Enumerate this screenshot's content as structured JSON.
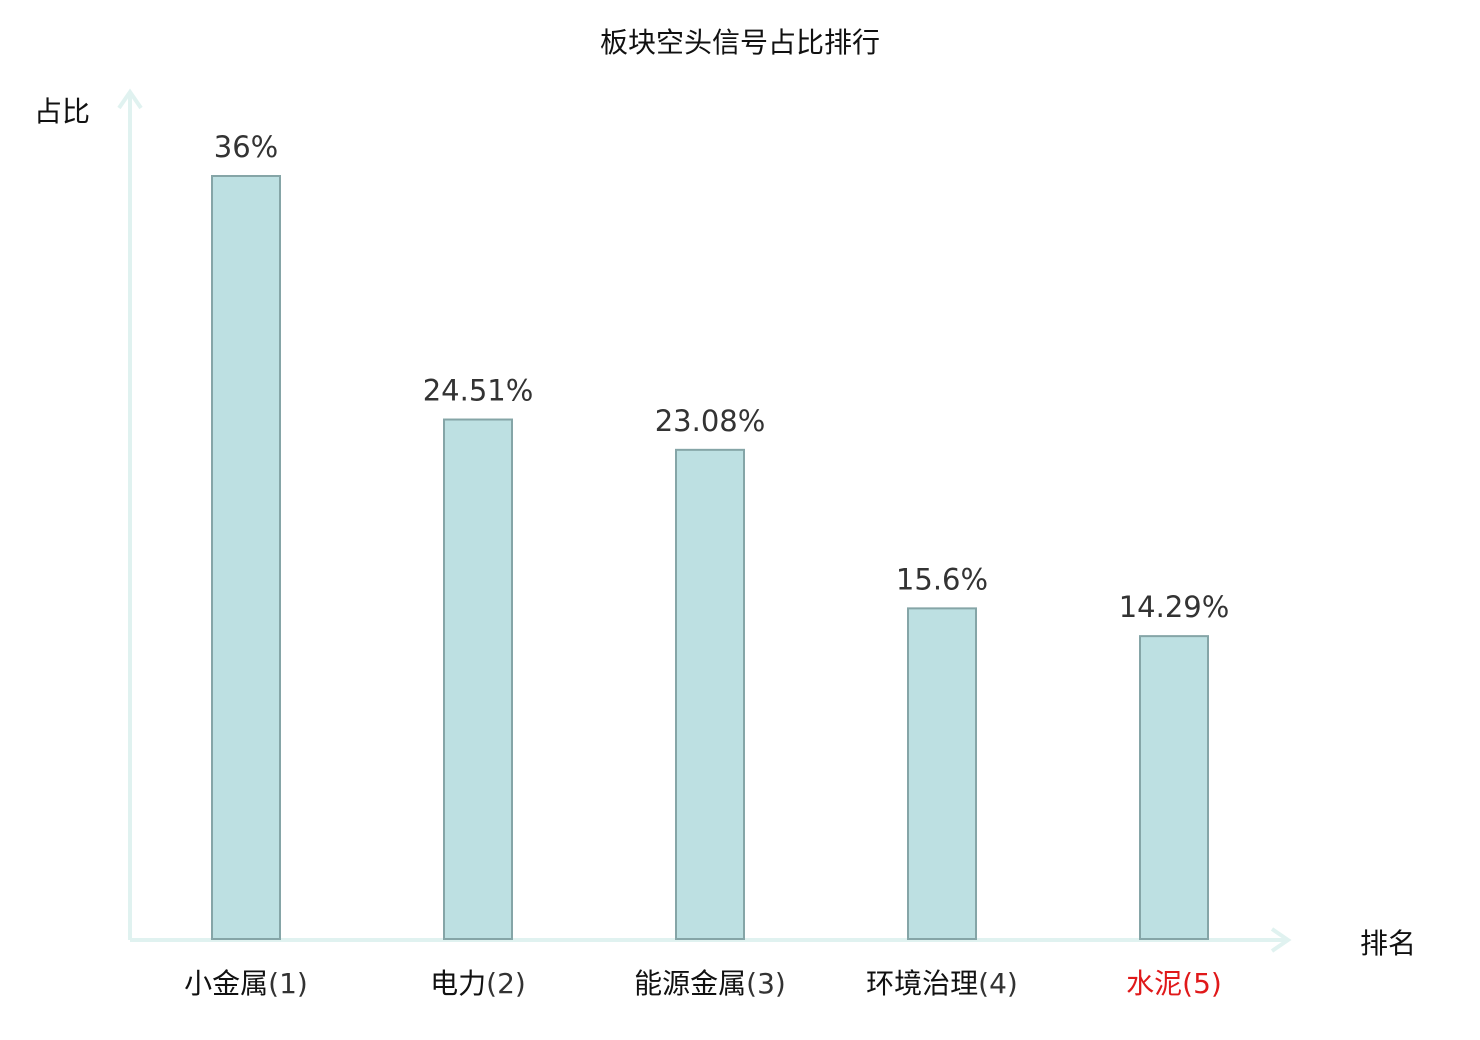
{
  "chart_data": {
    "type": "bar",
    "title": "板块空头信号占比排行",
    "xlabel": "排名",
    "ylabel": "占比",
    "categories": [
      {
        "name": "小金属",
        "rank": "(1)"
      },
      {
        "name": "电力",
        "rank": "(2)"
      },
      {
        "name": "能源金属",
        "rank": "(3)"
      },
      {
        "name": "环境治理",
        "rank": "(4)"
      },
      {
        "name": "水泥",
        "rank": "(5)"
      }
    ],
    "values": [
      36,
      24.51,
      23.08,
      15.6,
      14.29
    ],
    "value_labels": [
      "36%",
      "24.51%",
      "23.08%",
      "15.6%",
      "14.29%"
    ],
    "ylim": [
      0,
      36
    ],
    "grid": false,
    "highlight_index": 4,
    "colors": {
      "bar_fill": "#bde0e2",
      "bar_stroke": "#85a5a7",
      "axis": "#e0f2f0",
      "label": "#111111",
      "rank": "#333333",
      "highlight": "#e0191a"
    }
  }
}
